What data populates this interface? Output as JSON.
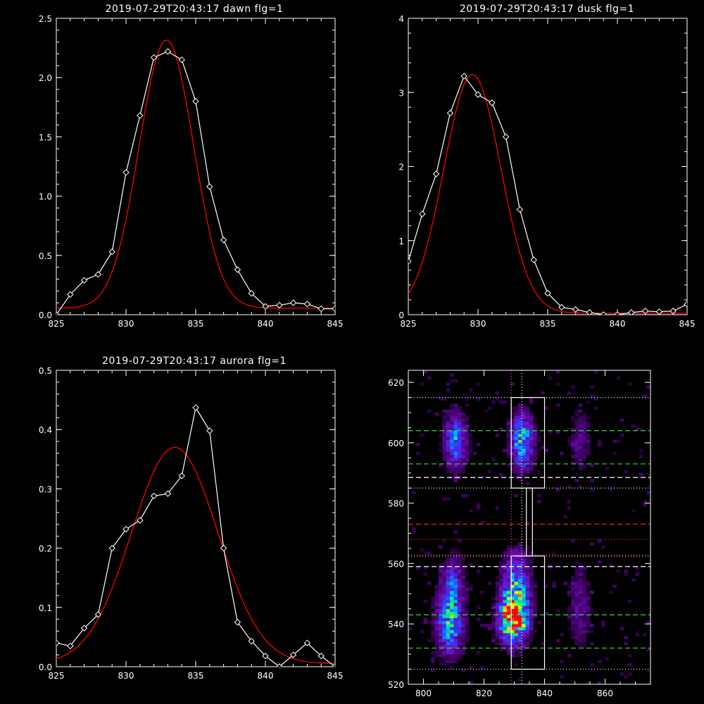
{
  "colors": {
    "background": "#000000",
    "axes": "#ffffff",
    "data": "#ffffff",
    "fit": "#ff0000",
    "guide_green": "#33dd33",
    "guide_red": "#ff2222"
  },
  "chart_data": [
    {
      "id": "dawn",
      "type": "line",
      "title": "2019-07-29T20:43:17 dawn flg=1",
      "xlim": [
        825,
        845
      ],
      "ylim": [
        0,
        2.5
      ],
      "xticks": [
        825,
        830,
        835,
        840,
        845
      ],
      "yticks": [
        0.0,
        0.5,
        1.0,
        1.5,
        2.0,
        2.5
      ],
      "ytick_labels": [
        "0.0",
        "0.5",
        "1.0",
        "1.5",
        "2.0",
        "2.5"
      ],
      "series": [
        {
          "role": "data",
          "markers": "diamond",
          "x": [
            825,
            826,
            827,
            828,
            829,
            830,
            831,
            832,
            833,
            834,
            835,
            836,
            837,
            838,
            839,
            840,
            841,
            842,
            843,
            844,
            845
          ],
          "y": [
            0.0,
            0.17,
            0.29,
            0.34,
            0.53,
            1.2,
            1.68,
            2.17,
            2.22,
            2.15,
            1.8,
            1.08,
            0.63,
            0.38,
            0.18,
            0.07,
            0.08,
            0.1,
            0.09,
            0.05,
            0.05
          ]
        },
        {
          "role": "fit",
          "type": "gaussian",
          "x0": 832.9,
          "sigma": 1.95,
          "amp": 2.26,
          "base": 0.055
        }
      ]
    },
    {
      "id": "dusk",
      "type": "line",
      "title": "2019-07-29T20:43:17 dusk flg=1",
      "xlim": [
        825,
        845
      ],
      "ylim": [
        0,
        4
      ],
      "xticks": [
        825,
        830,
        835,
        840,
        845
      ],
      "yticks": [
        0,
        1,
        2,
        3,
        4
      ],
      "ytick_labels": [
        "0",
        "1",
        "2",
        "3",
        "4"
      ],
      "series": [
        {
          "role": "data",
          "markers": "diamond",
          "x": [
            825,
            826,
            827,
            828,
            829,
            830,
            831,
            832,
            833,
            834,
            835,
            836,
            837,
            838,
            839,
            840,
            841,
            842,
            843,
            844,
            845
          ],
          "y": [
            0.72,
            1.36,
            1.9,
            2.72,
            3.22,
            2.97,
            2.86,
            2.4,
            1.42,
            0.74,
            0.29,
            0.1,
            0.07,
            0.03,
            0.0,
            0.0,
            0.03,
            0.05,
            0.04,
            0.05,
            0.14
          ]
        },
        {
          "role": "fit",
          "type": "gaussian",
          "x0": 829.6,
          "sigma": 2.05,
          "amp": 3.22,
          "base": 0.02
        }
      ]
    },
    {
      "id": "aurora",
      "type": "line",
      "title": "2019-07-29T20:43:17 aurora flg=1",
      "xlim": [
        825,
        845
      ],
      "ylim": [
        0,
        0.5
      ],
      "xticks": [
        825,
        830,
        835,
        840,
        845
      ],
      "yticks": [
        0.0,
        0.1,
        0.2,
        0.3,
        0.4,
        0.5
      ],
      "ytick_labels": [
        "0.0",
        "0.1",
        "0.2",
        "0.3",
        "0.4",
        "0.5"
      ],
      "series": [
        {
          "role": "data",
          "markers": "diamond",
          "x": [
            825,
            826,
            827,
            828,
            829,
            830,
            831,
            832,
            833,
            834,
            835,
            836,
            837,
            838,
            839,
            840,
            841,
            842,
            843,
            844,
            845
          ],
          "y": [
            0.04,
            0.035,
            0.065,
            0.088,
            0.2,
            0.232,
            0.247,
            0.288,
            0.292,
            0.322,
            0.437,
            0.398,
            0.2,
            0.075,
            0.043,
            0.018,
            0.0,
            0.02,
            0.04,
            0.018,
            0.0
          ]
        },
        {
          "role": "fit",
          "type": "gaussian",
          "x0": 833.5,
          "sigma": 3.1,
          "amp": 0.365,
          "base": 0.005
        }
      ]
    },
    {
      "id": "spectrogram",
      "type": "heatmap",
      "title": "",
      "xlim": [
        795,
        875
      ],
      "ylim": [
        520,
        624
      ],
      "xticks": [
        800,
        820,
        840,
        860
      ],
      "yticks": [
        520,
        540,
        560,
        580,
        600,
        620
      ],
      "blobs": [
        {
          "x": 808,
          "y": 540,
          "sx": 3.0,
          "sy": 7,
          "amp": 0.55
        },
        {
          "x": 809,
          "y": 553,
          "sx": 2.5,
          "sy": 6,
          "amp": 0.3
        },
        {
          "x": 810,
          "y": 600,
          "sx": 2.5,
          "sy": 6,
          "amp": 0.45
        },
        {
          "x": 829,
          "y": 541,
          "sx": 3.0,
          "sy": 5,
          "amp": 1.0
        },
        {
          "x": 830,
          "y": 551,
          "sx": 3.0,
          "sy": 8,
          "amp": 0.55
        },
        {
          "x": 832,
          "y": 600,
          "sx": 2.5,
          "sy": 6,
          "amp": 0.6
        },
        {
          "x": 851,
          "y": 545,
          "sx": 2.5,
          "sy": 9,
          "amp": 0.18
        },
        {
          "x": 851,
          "y": 600,
          "sx": 2.5,
          "sy": 7,
          "amp": 0.16
        }
      ],
      "boxes": [
        {
          "x0": 829,
          "x1": 840,
          "y0": 525,
          "y1": 562.5
        },
        {
          "x0": 829,
          "x1": 840,
          "y0": 585,
          "y1": 615
        },
        {
          "x0": 834,
          "x1": 836,
          "y0": 562.5,
          "y1": 585
        }
      ],
      "hlines": [
        {
          "y": 615,
          "style": "dotted",
          "color": "#ffffff"
        },
        {
          "y": 604,
          "style": "dashed",
          "color": "#33dd33"
        },
        {
          "y": 593,
          "style": "dashed",
          "color": "#33dd33"
        },
        {
          "y": 588.5,
          "style": "dashed",
          "color": "#ffffff"
        },
        {
          "y": 585,
          "style": "dotted",
          "color": "#ffffff"
        },
        {
          "y": 573,
          "style": "dashed",
          "color": "#ff2222"
        },
        {
          "y": 568,
          "style": "dotted",
          "color": "#ff2222"
        },
        {
          "y": 563,
          "style": "dotted",
          "color": "#ff2222"
        },
        {
          "y": 562.5,
          "style": "dotted",
          "color": "#ffffff"
        },
        {
          "y": 559,
          "style": "dashed",
          "color": "#ffffff"
        },
        {
          "y": 543,
          "style": "dashed",
          "color": "#33dd33"
        },
        {
          "y": 532,
          "style": "dashed",
          "color": "#33dd33"
        },
        {
          "y": 525,
          "style": "dotted",
          "color": "#ffffff"
        }
      ],
      "vlines": [
        {
          "x": 829,
          "style": "dotted",
          "color": "#ff44ff"
        },
        {
          "x": 832.5,
          "style": "dotted",
          "color": "#ffffff"
        }
      ]
    }
  ]
}
